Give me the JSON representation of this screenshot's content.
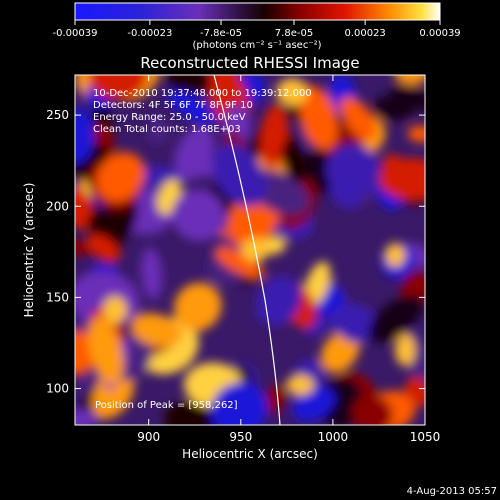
{
  "chart_data": {
    "type": "heatmap",
    "title": "Reconstructed RHESSI Image",
    "xlabel": "Heliocentric X (arcsec)",
    "ylabel": "Heliocentric Y (arcsec)",
    "xlim": [
      860,
      1050
    ],
    "ylim": [
      80,
      272
    ],
    "x_ticks": [
      900,
      950,
      1000,
      1050
    ],
    "y_ticks": [
      100,
      150,
      200,
      250
    ],
    "colorbar": {
      "range": [
        -0.00039,
        0.00039
      ],
      "tick_values": [
        -0.00039,
        -0.00023,
        -7.8e-05,
        7.8e-05,
        0.00023,
        0.00039
      ],
      "tick_labels": [
        "-0.00039",
        "-0.00023",
        "-7.8e-05",
        "7.8e-05",
        "0.00023",
        "0.00039"
      ],
      "units_label": "(photons cm⁻² s⁻¹ asec⁻²)"
    },
    "annotations": [
      "10-Dec-2010 19:37:48.000 to 19:39:12.000",
      "Detectors: 4F 5F 6F 7F 8F 9F 10",
      "Energy Range: 25.0 - 50.0 keV",
      "Clean     Total counts: 1.68E+03"
    ],
    "peak_label": "Position of Peak = [958,262]",
    "peak_position": [
      958,
      262
    ],
    "date_stamp": "4-Aug-2013 05:57",
    "limb_color": "#ffffff",
    "grid": false
  }
}
